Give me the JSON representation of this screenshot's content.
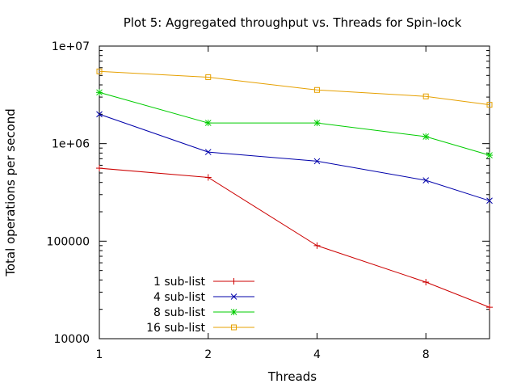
{
  "chart_data": {
    "type": "line",
    "title": "Plot 5: Aggregated throughput vs. Threads for Spin-lock",
    "xlabel": "Threads",
    "ylabel": "Total operations per second",
    "x_scale": "log2",
    "y_scale": "log10",
    "xlim": [
      1,
      12
    ],
    "ylim": [
      10000,
      10000000
    ],
    "x_ticks": [
      {
        "value": 1,
        "label": "1"
      },
      {
        "value": 2,
        "label": "2"
      },
      {
        "value": 4,
        "label": "4"
      },
      {
        "value": 8,
        "label": "8"
      }
    ],
    "y_ticks": [
      {
        "value": 10000,
        "label": "10000"
      },
      {
        "value": 100000,
        "label": "100000"
      },
      {
        "value": 1000000,
        "label": "1e+06"
      },
      {
        "value": 10000000,
        "label": "1e+07"
      }
    ],
    "legend_position": "bottom-left",
    "grid": false,
    "series": [
      {
        "name": "1 sub-list",
        "color": "#cc0000",
        "marker": "plus",
        "x": [
          1,
          2,
          4,
          8,
          12
        ],
        "y": [
          560000,
          450000,
          90000,
          38000,
          21000
        ]
      },
      {
        "name": "4 sub-list",
        "color": "#0000aa",
        "marker": "cross",
        "x": [
          1,
          2,
          4,
          8,
          12
        ],
        "y": [
          2000000,
          820000,
          660000,
          420000,
          260000
        ]
      },
      {
        "name": "8 sub-list",
        "color": "#00cc00",
        "marker": "star",
        "x": [
          1,
          2,
          4,
          8,
          12
        ],
        "y": [
          3350000,
          1630000,
          1630000,
          1180000,
          760000
        ]
      },
      {
        "name": "16 sub-list",
        "color": "#e6a000",
        "marker": "square",
        "x": [
          1,
          2,
          4,
          8,
          12
        ],
        "y": [
          5500000,
          4800000,
          3550000,
          3050000,
          2500000
        ]
      }
    ]
  }
}
